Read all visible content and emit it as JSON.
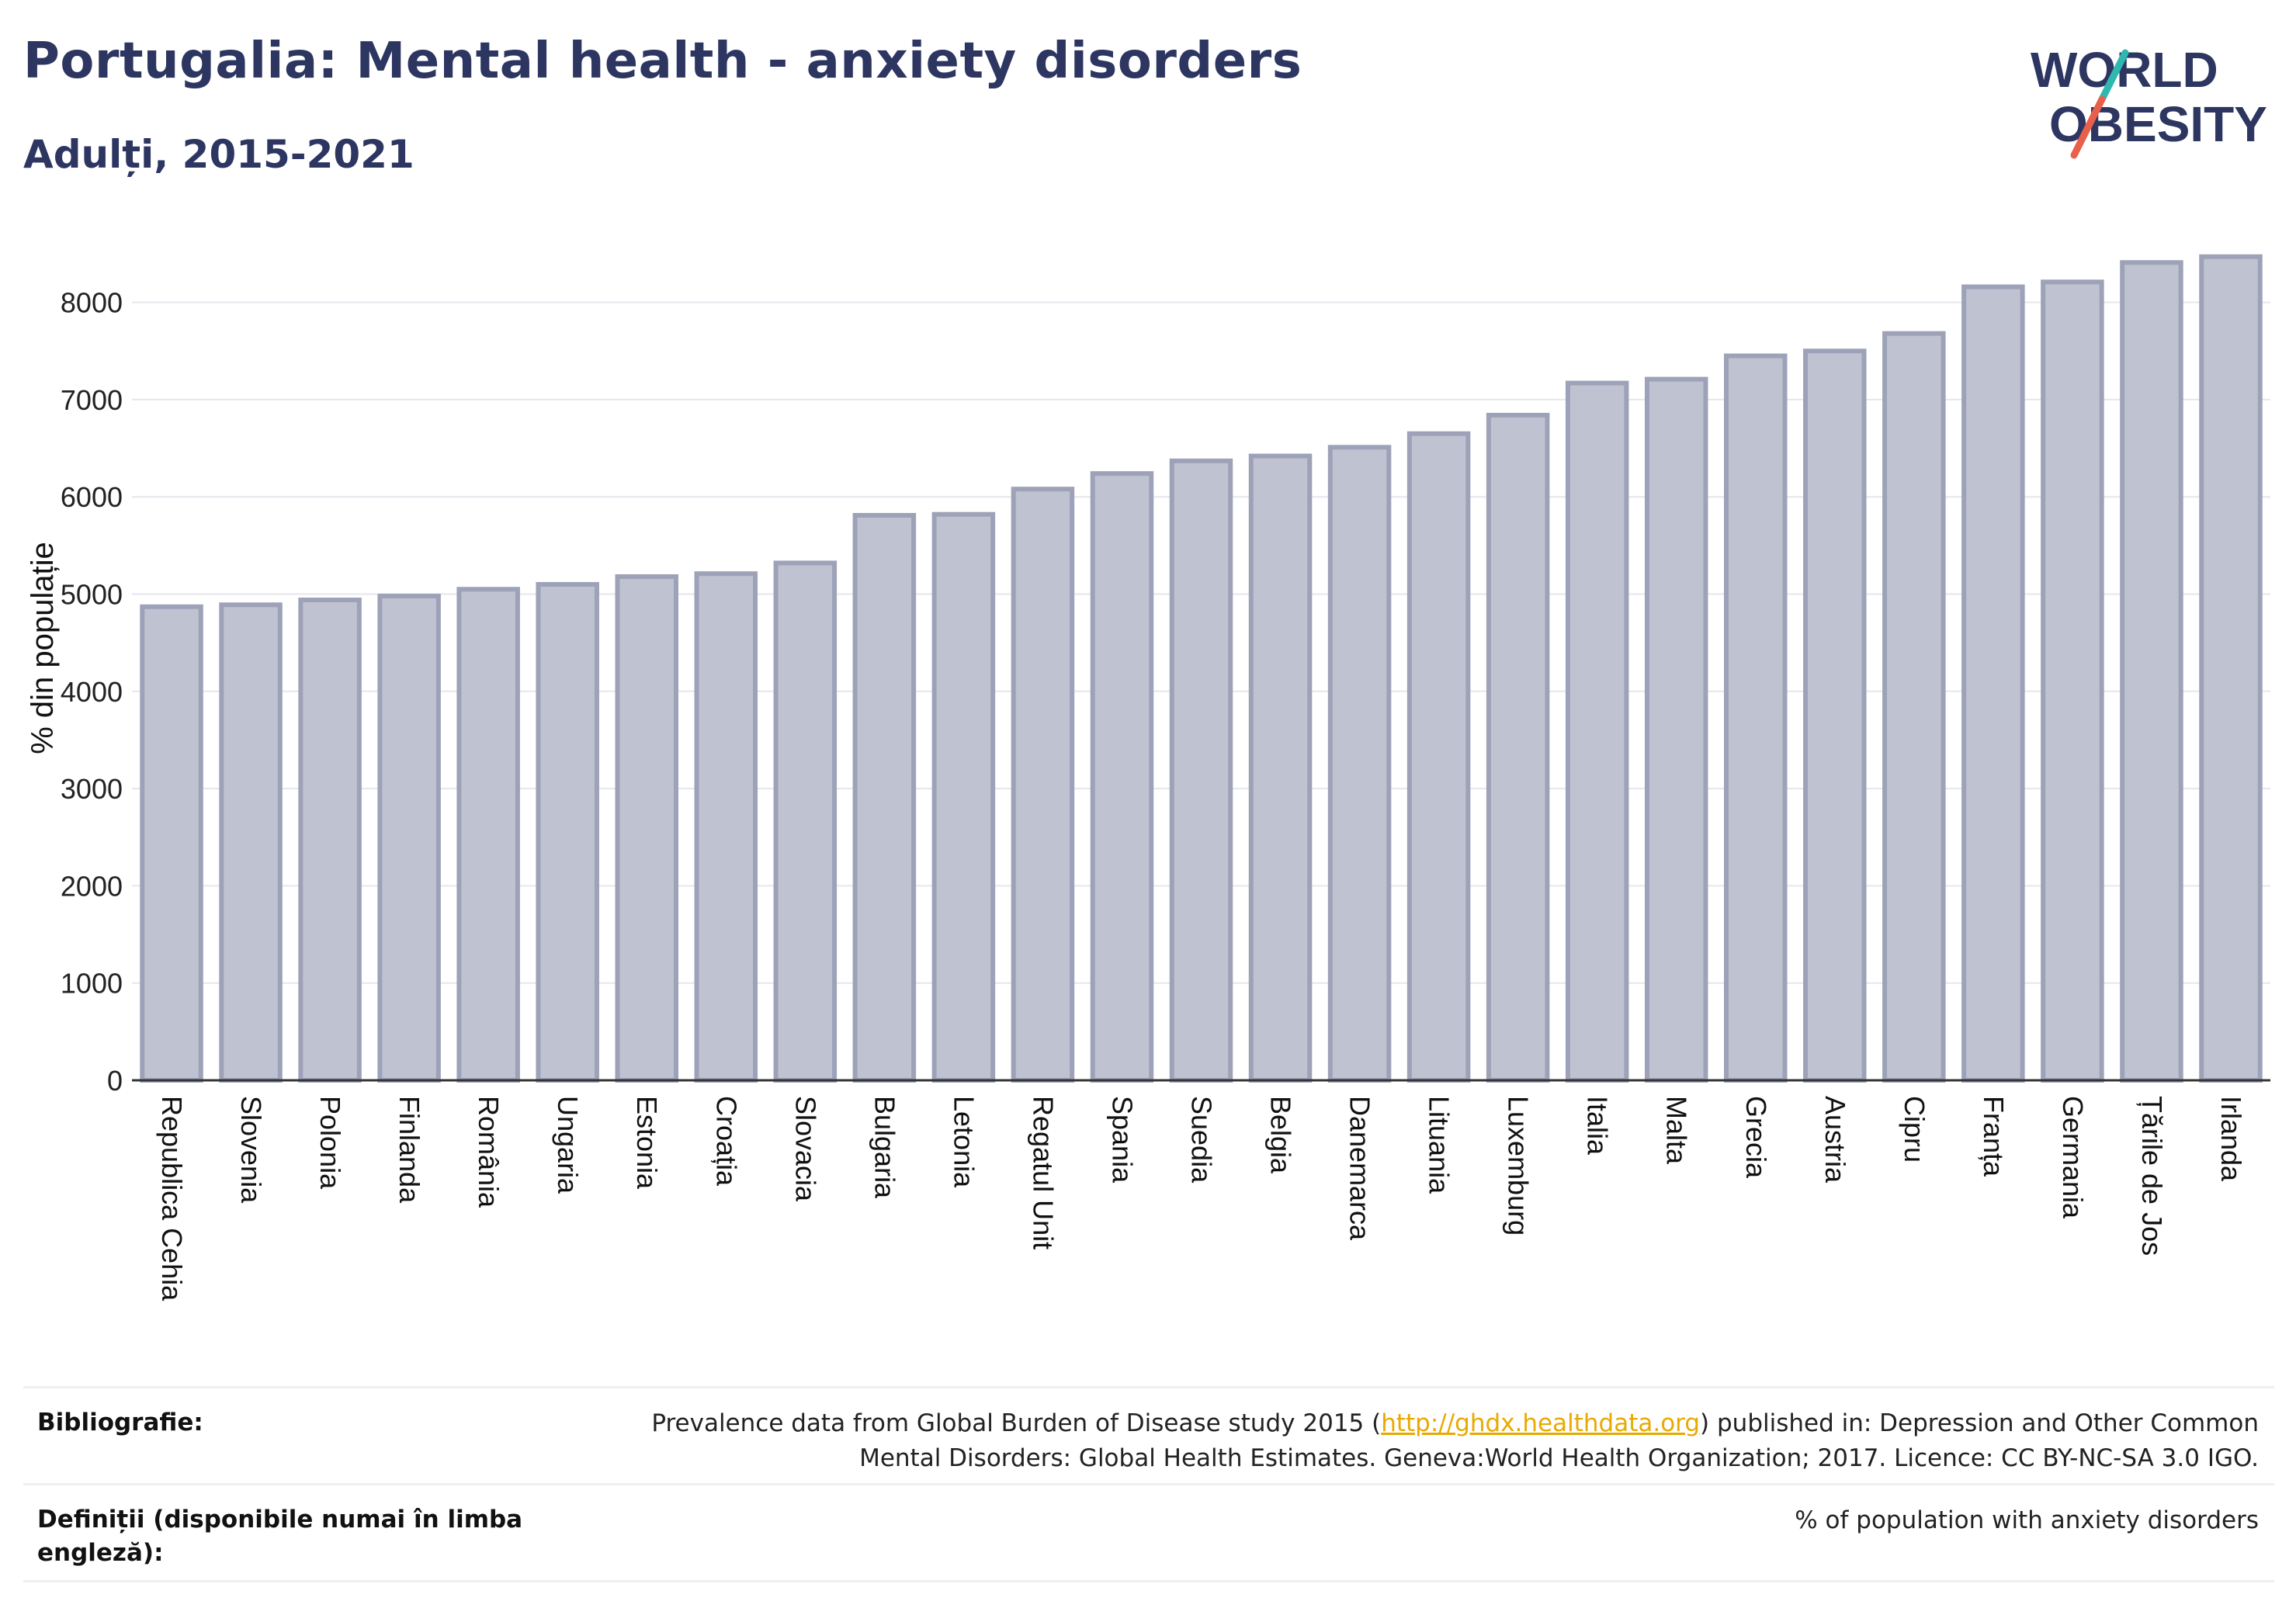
{
  "header": {
    "title": "Portugalia: Mental health - anxiety disorders",
    "subtitle": "Adulți, 2015-2021"
  },
  "logo": {
    "line1": "WORLD",
    "line2": "OBESITY",
    "accent_teal": "#2fb8b0",
    "accent_red": "#e8604c",
    "text_color": "#2d3561"
  },
  "chart_data": {
    "type": "bar",
    "ylabel": "% din populație",
    "xlabel": "",
    "ylim": [
      0,
      8700
    ],
    "yticks": [
      0,
      1000,
      2000,
      3000,
      4000,
      5000,
      6000,
      7000,
      8000
    ],
    "grid": true,
    "bar_fill": "#bfc2d0",
    "bar_stroke": "#9ea2b8",
    "categories": [
      "Republica Cehia",
      "Slovenia",
      "Polonia",
      "Finlanda",
      "România",
      "Ungaria",
      "Estonia",
      "Croația",
      "Slovacia",
      "Bulgaria",
      "Letonia",
      "Regatul Unit",
      "Spania",
      "Suedia",
      "Belgia",
      "Danemarca",
      "Lituania",
      "Luxemburg",
      "Italia",
      "Malta",
      "Grecia",
      "Austria",
      "Cipru",
      "Franța",
      "Germania",
      "Țările de Jos",
      "Irlanda"
    ],
    "values": [
      4870,
      4890,
      4940,
      4980,
      5050,
      5100,
      5180,
      5210,
      5320,
      5810,
      5820,
      6080,
      6240,
      6370,
      6420,
      6510,
      6650,
      6840,
      7170,
      7210,
      7450,
      7500,
      7680,
      8160,
      8210,
      8410,
      8470
    ]
  },
  "footer": {
    "bibliography_label": "Bibliografie:",
    "bibliography_pre": "Prevalence data from Global Burden of Disease study 2015 (",
    "bibliography_link": "http://ghdx.healthdata.org",
    "bibliography_post": ") published in: Depression and Other Common",
    "bibliography_line2": "Mental Disorders: Global Health Estimates. Geneva:World Health Organization; 2017. Licence: CC BY-NC-SA 3.0 IGO.",
    "definitions_label_line1": "Definiții (disponibile numai în limba",
    "definitions_label_line2": "engleză):",
    "definitions_text": "% of population with anxiety disorders"
  }
}
